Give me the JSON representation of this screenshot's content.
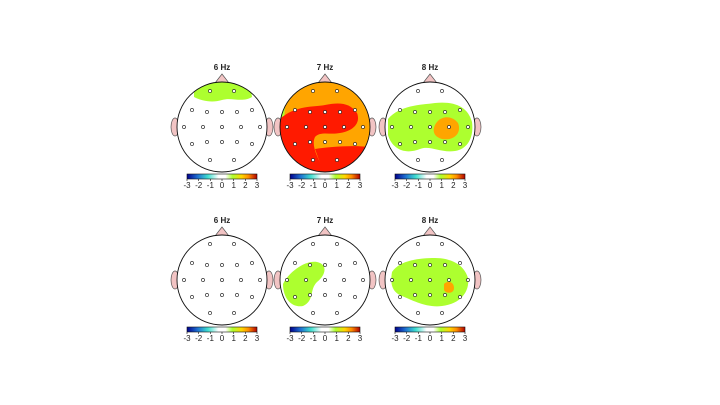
{
  "panels": [
    {
      "title": "6 Hz",
      "clim": [
        -3,
        3
      ],
      "colorbar_ticks": [
        -3,
        -2,
        -1,
        0,
        1,
        2,
        3
      ]
    },
    {
      "title": "7 Hz",
      "clim": [
        -3,
        3
      ],
      "colorbar_ticks": [
        -3,
        -2,
        -1,
        0,
        1,
        2,
        3
      ]
    },
    {
      "title": "8 Hz",
      "clim": [
        -3,
        3
      ],
      "colorbar_ticks": [
        -3,
        -2,
        -1,
        0,
        1,
        2,
        3
      ]
    },
    {
      "title": "6 Hz",
      "clim": [
        -3,
        3
      ],
      "colorbar_ticks": [
        -3,
        -2,
        -1,
        0,
        1,
        2,
        3
      ]
    },
    {
      "title": "7 Hz",
      "clim": [
        -3,
        3
      ],
      "colorbar_ticks": [
        -3,
        -2,
        -1,
        0,
        1,
        2,
        3
      ]
    },
    {
      "title": "8 Hz",
      "clim": [
        -3,
        3
      ],
      "colorbar_ticks": [
        -3,
        -2,
        -1,
        0,
        1,
        2,
        3
      ]
    }
  ]
}
